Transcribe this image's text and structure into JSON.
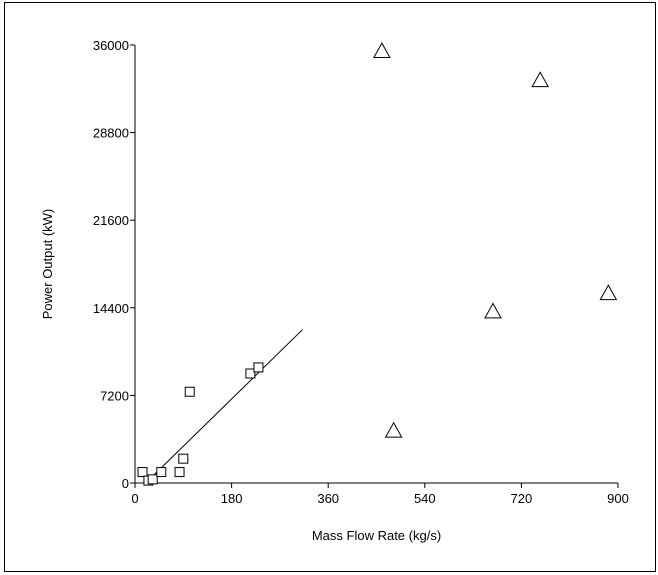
{
  "chart_data": {
    "type": "scatter",
    "title": "",
    "xlabel": "Mass Flow Rate (kg/s)",
    "ylabel": "Power Output (kW)",
    "xlim": [
      0,
      900
    ],
    "ylim": [
      0,
      36000
    ],
    "x_ticks": [
      0,
      180,
      360,
      540,
      720,
      900
    ],
    "y_ticks": [
      0,
      7200,
      14400,
      21600,
      28800,
      36000
    ],
    "x_tick_labels": [
      "0",
      "180",
      "360",
      "540",
      "720",
      "900"
    ],
    "y_tick_labels": [
      "0",
      "7200",
      "14400",
      "21600",
      "28800",
      "36000"
    ],
    "grid": false,
    "legend": "none",
    "series": [
      {
        "marker": "square",
        "color": "#000000",
        "points": [
          {
            "x": 14,
            "y": 900
          },
          {
            "x": 25,
            "y": 200
          },
          {
            "x": 33,
            "y": 300
          },
          {
            "x": 49,
            "y": 900
          },
          {
            "x": 83,
            "y": 900
          },
          {
            "x": 90,
            "y": 2000
          },
          {
            "x": 102,
            "y": 7500
          },
          {
            "x": 215,
            "y": 9000
          },
          {
            "x": 230,
            "y": 9500
          }
        ]
      },
      {
        "marker": "triangle",
        "color": "#000000",
        "points": [
          {
            "x": 460,
            "y": 35500
          },
          {
            "x": 482,
            "y": 4300
          },
          {
            "x": 667,
            "y": 14100
          },
          {
            "x": 755,
            "y": 33100
          },
          {
            "x": 882,
            "y": 15600
          }
        ]
      }
    ],
    "fit_line": {
      "color": "#000000",
      "points": [
        {
          "x": 20,
          "y": 0
        },
        {
          "x": 312,
          "y": 12600
        }
      ]
    }
  }
}
